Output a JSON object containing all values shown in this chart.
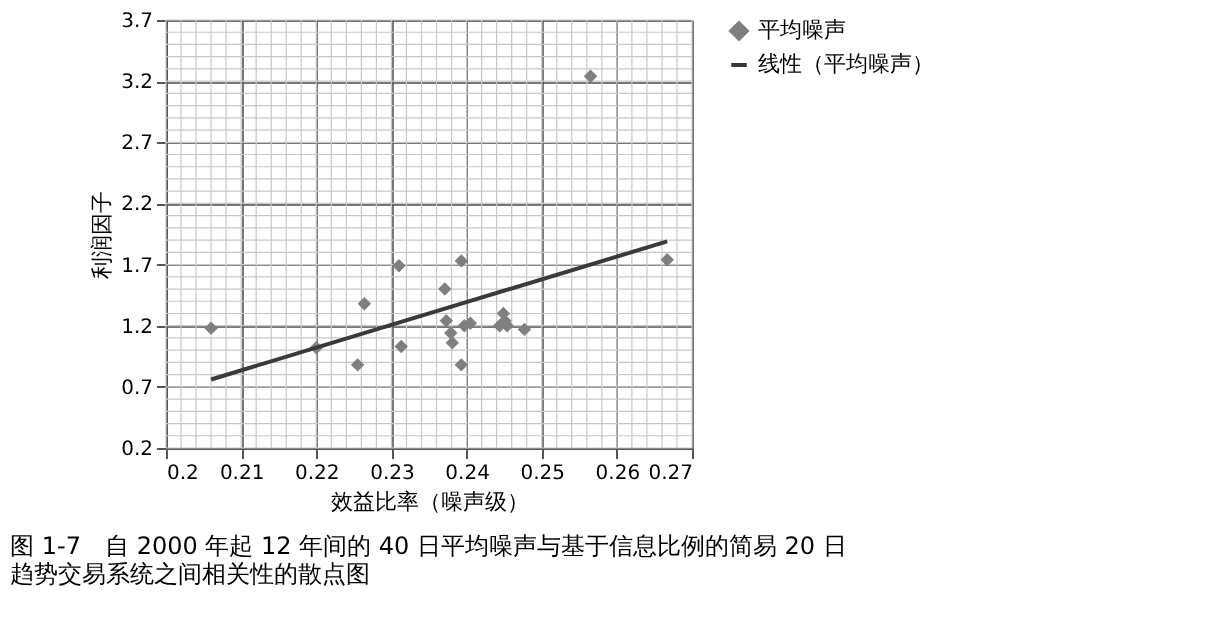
{
  "chart_data": {
    "type": "scatter",
    "xlabel": "效益比率（噪声级）",
    "ylabel": "利润因子",
    "xlim": [
      0.2,
      0.27
    ],
    "xticks": [
      0.2,
      0.21,
      0.22,
      0.23,
      0.24,
      0.25,
      0.26,
      0.27
    ],
    "ylim": [
      0.2,
      3.7
    ],
    "yticks": [
      0.2,
      0.7,
      1.2,
      1.7,
      2.2,
      2.7,
      3.2,
      3.7
    ],
    "grid": true,
    "legend": "right",
    "series": [
      {
        "name": "平均噪声",
        "color": "#7f7f7f",
        "marker": "diamond",
        "x": [
          0.206,
          0.22,
          0.2255,
          0.2264,
          0.231,
          0.2313,
          0.2371,
          0.2373,
          0.2379,
          0.2381,
          0.2393,
          0.2393,
          0.2397,
          0.2405,
          0.2444,
          0.2449,
          0.2451,
          0.2454,
          0.2477,
          0.2565,
          0.2667
        ],
        "values": [
          1.18,
          1.02,
          0.88,
          1.38,
          1.69,
          1.03,
          1.5,
          1.24,
          1.14,
          1.06,
          1.73,
          0.88,
          1.2,
          1.22,
          1.2,
          1.3,
          1.24,
          1.2,
          1.17,
          3.24,
          1.74
        ]
      },
      {
        "name": "线性（平均噪声）",
        "color": "#3a3a3a",
        "type": "line",
        "marker": "none",
        "line_style": "solid",
        "x": [
          0.206,
          0.2667
        ],
        "values": [
          0.76,
          1.89
        ]
      }
    ],
    "annotations": [
      "图 1-7　自 2000 年起 12 年间的 40 日平均噪声与基于信息比例的简易 20 日趋势交易系统之间相关性的散点图"
    ]
  }
}
